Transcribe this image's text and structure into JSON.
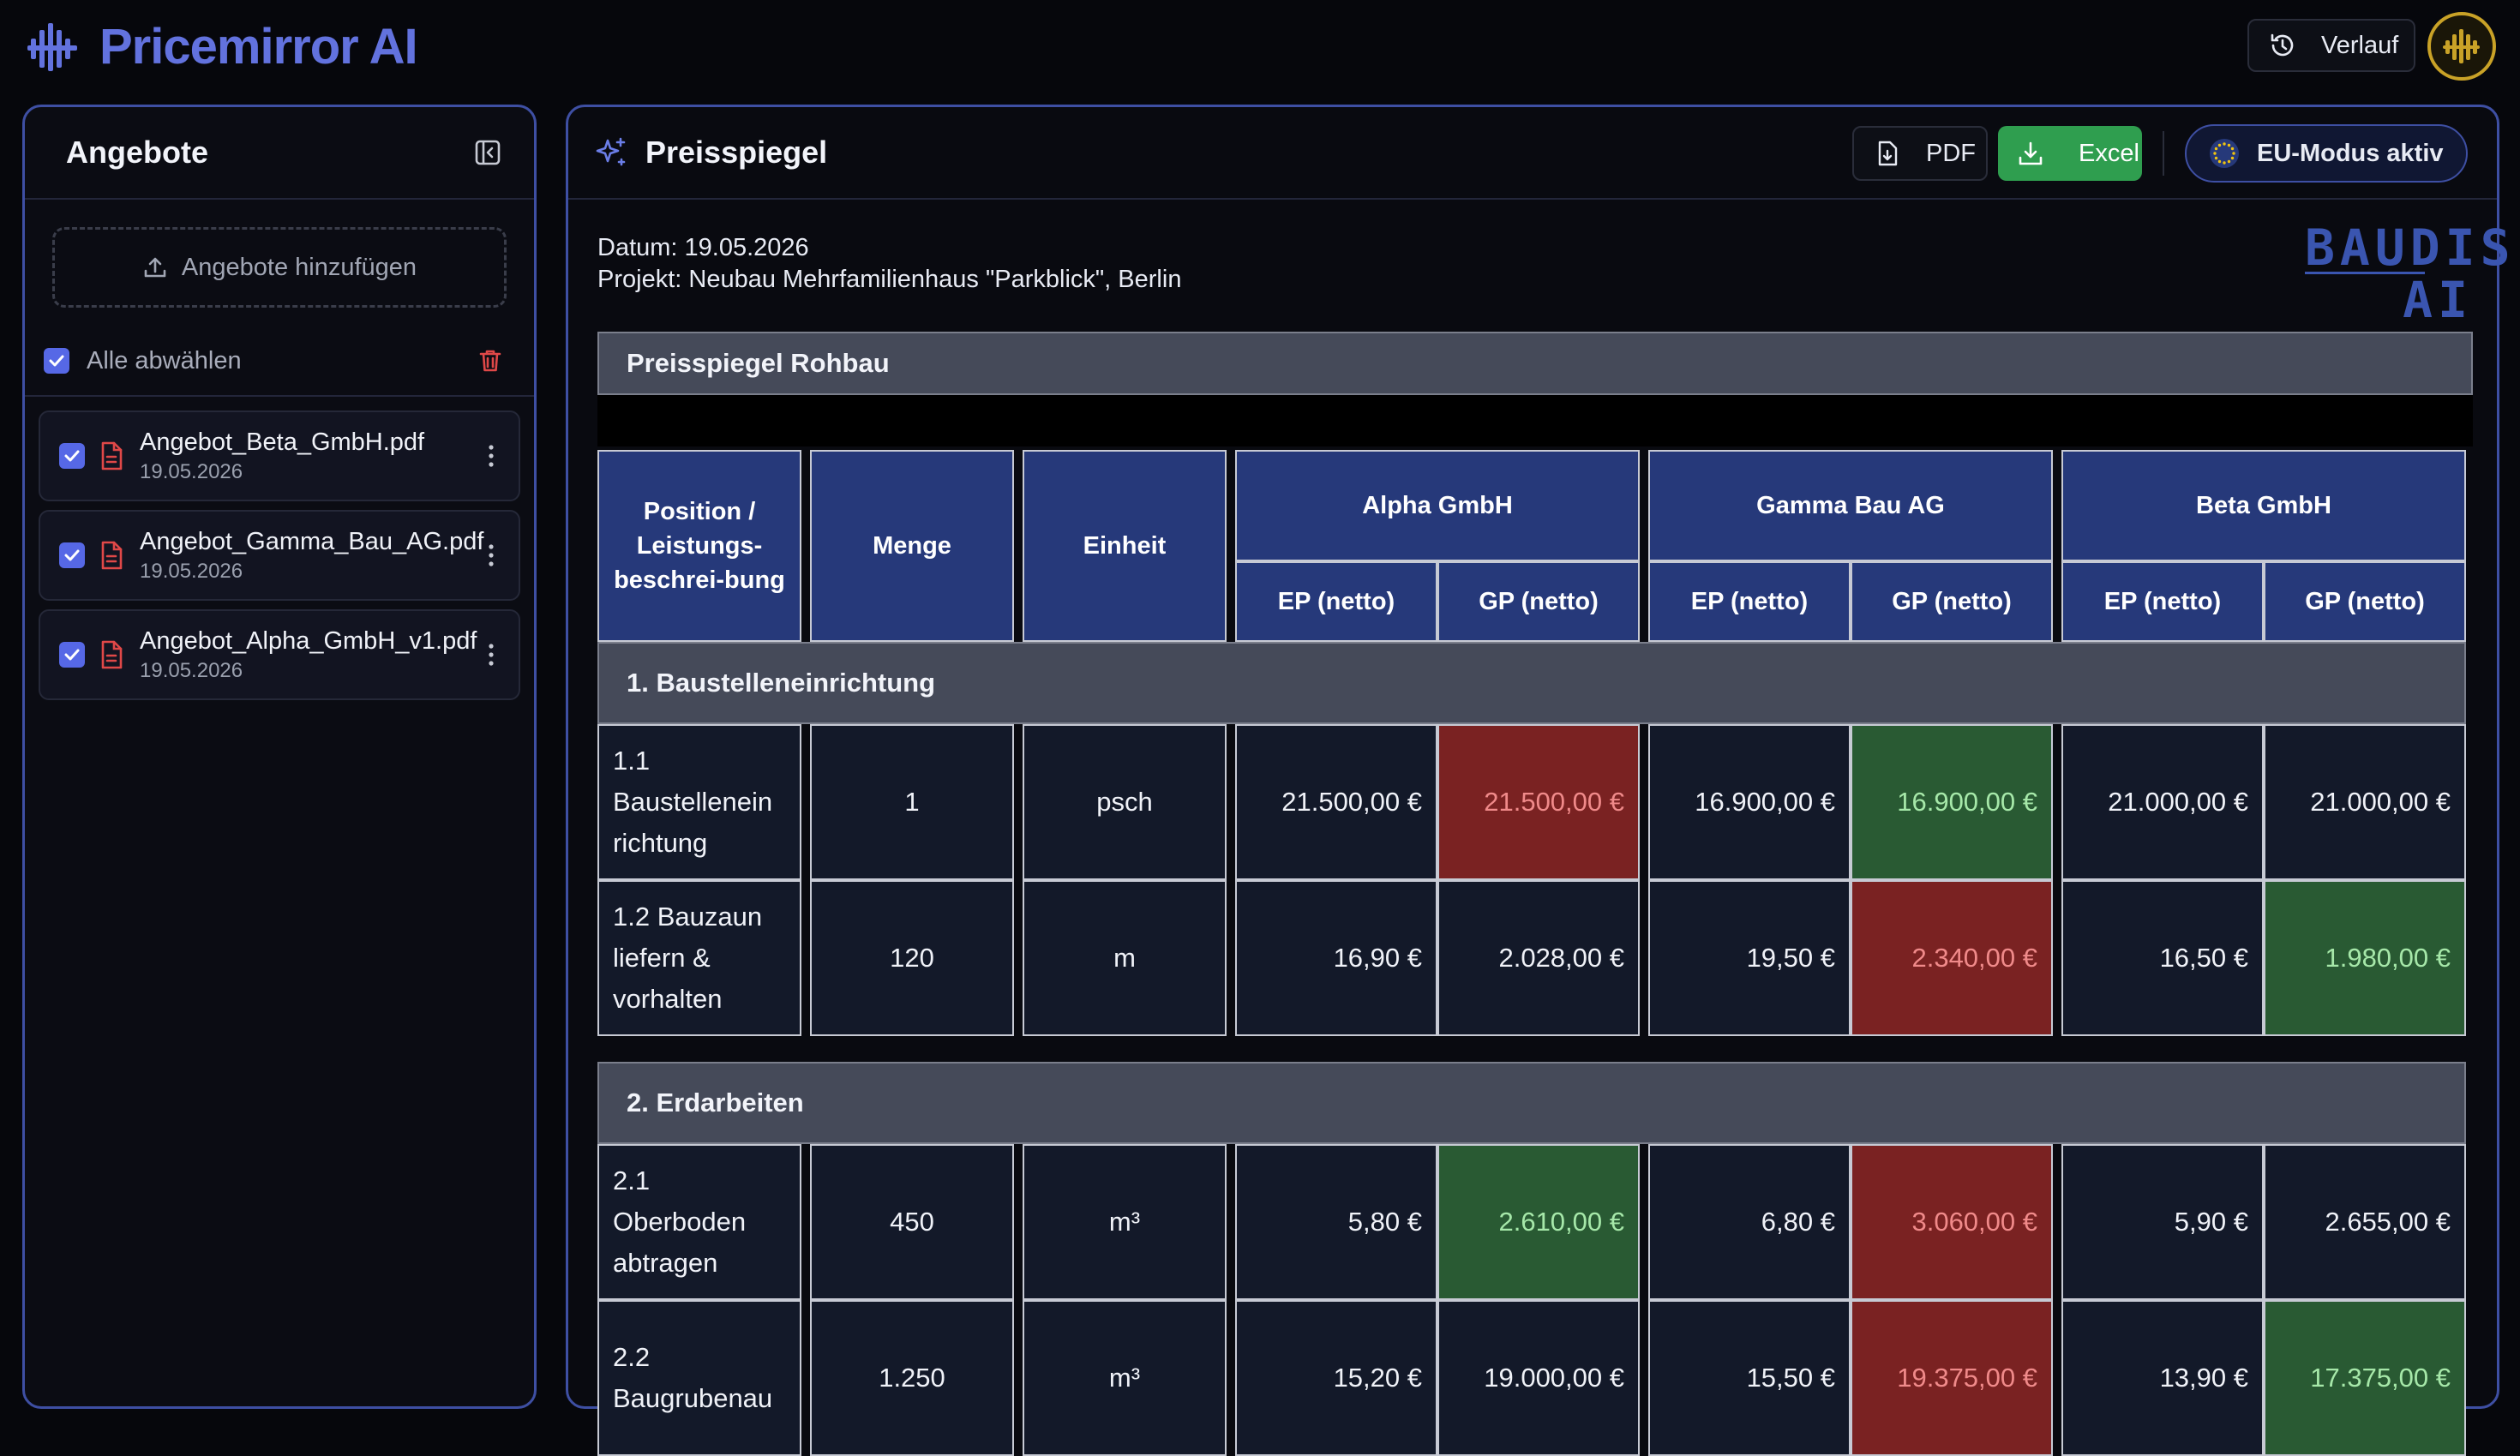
{
  "app": {
    "name": "Pricemirror AI",
    "history_label": "Verlauf"
  },
  "sidebar": {
    "title": "Angebote",
    "upload_label": "Angebote hinzufügen",
    "select_all_label": "Alle abwählen",
    "files": [
      {
        "name": "Angebot_Beta_GmbH.pdf",
        "date": "19.05.2026"
      },
      {
        "name": "Angebot_Gamma_Bau_AG.pdf",
        "date": "19.05.2026"
      },
      {
        "name": "Angebot_Alpha_GmbH_v1.pdf",
        "date": "19.05.2026"
      }
    ]
  },
  "main": {
    "title": "Preisspiegel",
    "pdf_label": "PDF",
    "excel_label": "Excel",
    "eu_label": "EU-Modus aktiv",
    "date_line": "Datum: 19.05.2026",
    "project_line": "Projekt: Neubau Mehrfamilienhaus \"Parkblick\", Berlin",
    "brand_logo_top": "BAUDIS",
    "brand_logo_bottom": "AI",
    "section_title": "Preisspiegel Rohbau"
  },
  "table": {
    "headers": {
      "position": "Position / Leistungs-beschrei-bung",
      "menge": "Menge",
      "einheit": "Einheit",
      "ep": "EP (netto)",
      "gp": "GP (netto)"
    },
    "bidders": [
      "Alpha GmbH",
      "Gamma Bau AG",
      "Beta GmbH"
    ],
    "groups": [
      {
        "title": "1. Baustelleneinrichtung",
        "rows": [
          {
            "pos": "1.1 Baustellenein richtung",
            "menge": "1",
            "einheit": "psch",
            "prices": [
              "21.500,00 €",
              "21.500,00 €",
              "16.900,00 €",
              "16.900,00 €",
              "21.000,00 €",
              "21.000,00 €"
            ],
            "highlight": [
              "",
              "red",
              "",
              "green",
              "",
              ""
            ]
          },
          {
            "pos": "1.2 Bauzaun liefern & vorhalten",
            "menge": "120",
            "einheit": "m",
            "prices": [
              "16,90 €",
              "2.028,00 €",
              "19,50 €",
              "2.340,00 €",
              "16,50 €",
              "1.980,00 €"
            ],
            "highlight": [
              "",
              "",
              "",
              "red",
              "",
              "green"
            ]
          }
        ]
      },
      {
        "title": "2. Erdarbeiten",
        "rows": [
          {
            "pos": "2.1 Oberboden abtragen",
            "menge": "450",
            "einheit": "m³",
            "prices": [
              "5,80 €",
              "2.610,00 €",
              "6,80 €",
              "3.060,00 €",
              "5,90 €",
              "2.655,00 €"
            ],
            "highlight": [
              "",
              "green",
              "",
              "red",
              "",
              ""
            ]
          },
          {
            "pos": "2.2 Baugrubenau",
            "menge": "1.250",
            "einheit": "m³",
            "prices": [
              "15,20 €",
              "19.000,00 €",
              "15,50 €",
              "19.375,00 €",
              "13,90 €",
              "17.375,00 €"
            ],
            "highlight": [
              "",
              "",
              "",
              "red",
              "",
              "green"
            ]
          }
        ]
      }
    ]
  },
  "colors": {
    "accent": "#5668e6",
    "header_blue": "#26397a",
    "highest": "#7a2222",
    "lowest": "#295a33",
    "excel_green": "#2f9e4f"
  }
}
